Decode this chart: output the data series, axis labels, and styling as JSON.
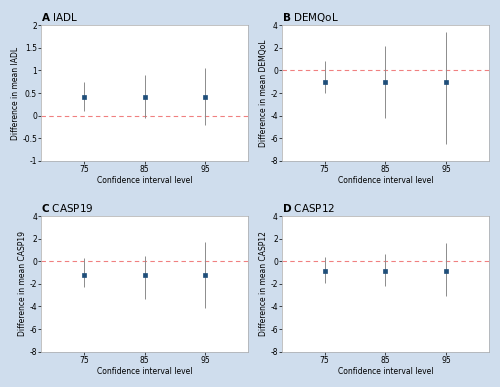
{
  "panels": [
    {
      "label": "A",
      "title": "IADL",
      "ylabel": "Difference in mean IADL",
      "xlabel": "Confidence interval level",
      "x": [
        75,
        85,
        95
      ],
      "mean": [
        0.42,
        0.42,
        0.42
      ],
      "ci_low": [
        0.1,
        -0.06,
        -0.2
      ],
      "ci_high": [
        0.74,
        0.89,
        1.06
      ],
      "ylim": [
        -1,
        2
      ],
      "yticks": [
        -1,
        -0.5,
        0,
        0.5,
        1,
        1.5,
        2
      ]
    },
    {
      "label": "B",
      "title": "DEMQoL",
      "ylabel": "Difference in mean DEMQoL",
      "xlabel": "Confidence interval level",
      "x": [
        75,
        85,
        95
      ],
      "mean": [
        -1.0,
        -1.0,
        -1.0
      ],
      "ci_low": [
        -2.0,
        -4.2,
        -6.5
      ],
      "ci_high": [
        0.8,
        2.2,
        3.4
      ],
      "ylim": [
        -8,
        4
      ],
      "yticks": [
        -8,
        -6,
        -4,
        -2,
        0,
        2,
        4
      ]
    },
    {
      "label": "C",
      "title": "CASP19",
      "ylabel": "Difference in mean CASP19",
      "xlabel": "Confidence interval level",
      "x": [
        75,
        85,
        95
      ],
      "mean": [
        -1.2,
        -1.2,
        -1.2
      ],
      "ci_low": [
        -2.3,
        -3.3,
        -4.1
      ],
      "ci_high": [
        0.3,
        0.5,
        1.7
      ],
      "ylim": [
        -8,
        4
      ],
      "yticks": [
        -8,
        -6,
        -4,
        -2,
        0,
        2,
        4
      ]
    },
    {
      "label": "D",
      "title": "CASP12",
      "ylabel": "Difference in mean CASP12",
      "xlabel": "Confidence interval level",
      "x": [
        75,
        85,
        95
      ],
      "mean": [
        -0.9,
        -0.9,
        -0.9
      ],
      "ci_low": [
        -1.9,
        -2.2,
        -3.1
      ],
      "ci_high": [
        0.35,
        0.65,
        1.6
      ],
      "ylim": [
        -8,
        4
      ],
      "yticks": [
        -8,
        -6,
        -4,
        -2,
        0,
        2,
        4
      ]
    }
  ],
  "outer_bg": "#cfdded",
  "plot_bg": "#ffffff",
  "marker_color": "#1f4e79",
  "ci_color": "#8c8c8c",
  "ref_color": "#f08080",
  "marker_size": 3.5,
  "marker_style": "s",
  "title_fontsize": 7.5,
  "tick_fontsize": 5.5,
  "label_fontsize": 5.5,
  "elinewidth": 0.7,
  "ref_linewidth": 0.8
}
